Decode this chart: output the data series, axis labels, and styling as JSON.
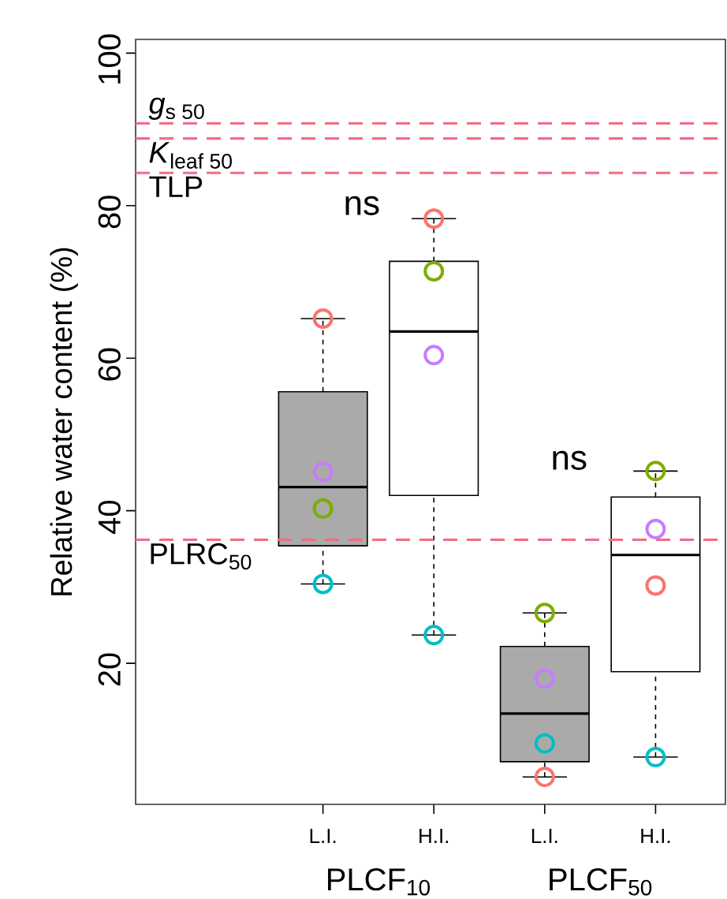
{
  "chart_data": {
    "type": "box",
    "ylabel": "Relative water content (%)",
    "categories": [
      "L.I.",
      "H.I.",
      "L.I.",
      "H.I."
    ],
    "boxes": [
      {
        "low": 30.4,
        "q1": 35.4,
        "median": 43.1,
        "q3": 55.6,
        "high": 65.2
      },
      {
        "low": 23.7,
        "q1": 42.0,
        "median": 63.5,
        "q3": 72.7,
        "high": 78.3
      },
      {
        "low": 5.1,
        "q1": 7.1,
        "median": 13.4,
        "q3": 22.2,
        "high": 26.6
      },
      {
        "low": 7.7,
        "q1": 18.9,
        "median": 34.2,
        "q3": 41.8,
        "high": 45.2
      }
    ],
    "colors": [
      "#aaaaaa",
      "#ffffff",
      "#aaaaaa",
      "#ffffff"
    ],
    "series": [
      {
        "type": "scatter",
        "color": "#f8766d",
        "values": [
          65.2,
          78.3,
          5.1,
          30.2
        ]
      },
      {
        "type": "scatter",
        "color": "#7cae00",
        "values": [
          40.3,
          71.4,
          26.6,
          45.2
        ]
      },
      {
        "type": "scatter",
        "color": "#c77cff",
        "values": [
          45.1,
          60.4,
          18.0,
          37.6
        ]
      },
      {
        "type": "scatter",
        "color": "#00bfc4",
        "values": [
          30.4,
          23.7,
          9.5,
          7.7
        ]
      }
    ],
    "marker": "circle",
    "ylim": [
      1.5,
      101.8
    ],
    "yticks": [
      20,
      40,
      60,
      80,
      100
    ],
    "ref_lines": [
      {
        "axis": "y",
        "value": 90.8,
        "label": "*g*$_{s 50}$",
        "color": "#f26d85",
        "line_style": "dashed"
      },
      {
        "axis": "y",
        "value": 88.8,
        "label": "*K*$_{leaf 50}$",
        "color": "#f26d85",
        "line_style": "dashed"
      },
      {
        "axis": "y",
        "value": 84.3,
        "label": "TLP",
        "color": "#f26d85",
        "line_style": "dashed"
      },
      {
        "axis": "y",
        "value": 36.2,
        "label": "PLRC$_{50}$",
        "color": "#f26d85",
        "line_style": "dashed"
      }
    ],
    "annotations": [
      "ns",
      "ns",
      "PLCF$_{10}$",
      "PLCF$_{50}$"
    ],
    "grid": false
  }
}
